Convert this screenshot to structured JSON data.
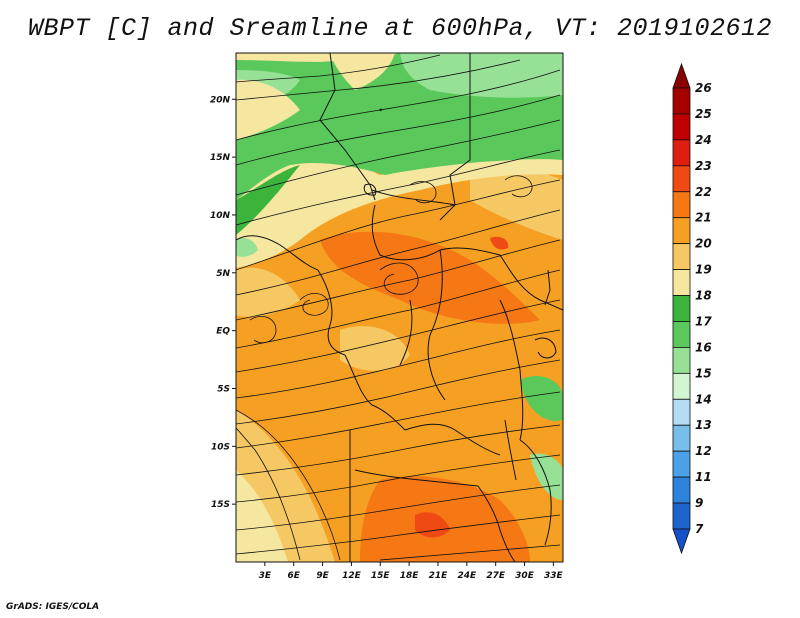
{
  "title": "WBPT [C] and Sreamline at 600hPa, VT: 2019102612",
  "credit": "GrADS: IGES/COLA",
  "map": {
    "lat_range": [
      -20,
      24
    ],
    "lon_range": [
      0,
      34
    ],
    "lat_ticks": [
      {
        "value": 20,
        "label": "20N"
      },
      {
        "value": 15,
        "label": "15N"
      },
      {
        "value": 10,
        "label": "10N"
      },
      {
        "value": 5,
        "label": "5N"
      },
      {
        "value": 0,
        "label": "EQ"
      },
      {
        "value": -5,
        "label": "5S"
      },
      {
        "value": -10,
        "label": "10S"
      },
      {
        "value": -15,
        "label": "15S"
      }
    ],
    "lon_ticks": [
      {
        "value": 3,
        "label": "3E"
      },
      {
        "value": 6,
        "label": "6E"
      },
      {
        "value": 9,
        "label": "9E"
      },
      {
        "value": 12,
        "label": "12E"
      },
      {
        "value": 15,
        "label": "15E"
      },
      {
        "value": 18,
        "label": "18E"
      },
      {
        "value": 21,
        "label": "21E"
      },
      {
        "value": 24,
        "label": "24E"
      },
      {
        "value": 27,
        "label": "27E"
      },
      {
        "value": 30,
        "label": "30E"
      },
      {
        "value": 33,
        "label": "33E"
      }
    ]
  },
  "colorbar": {
    "labels": [
      "26",
      "25",
      "24",
      "23",
      "22",
      "21",
      "20",
      "19",
      "18",
      "17",
      "16",
      "15",
      "14",
      "13",
      "12",
      "11",
      "9",
      "7"
    ],
    "colors": [
      "#a50000",
      "#c00000",
      "#e01e0f",
      "#f04a14",
      "#f57814",
      "#f5a023",
      "#f5c864",
      "#f5e6a0",
      "#3cb43c",
      "#5ac85a",
      "#96e196",
      "#d2f5d2",
      "#b4dcf5",
      "#78beeb",
      "#4ba0e6",
      "#2d82dc",
      "#1e64cd"
    ],
    "top_arrow_color": "#8b0000",
    "bottom_arrow_color": "#1450c8"
  }
}
